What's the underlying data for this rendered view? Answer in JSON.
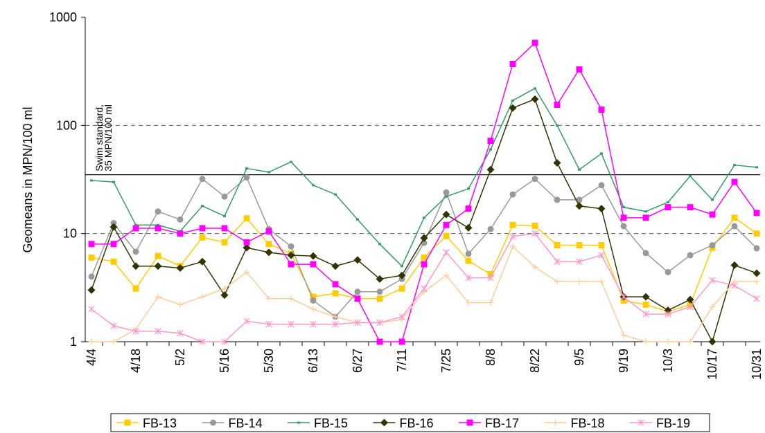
{
  "chart_data": {
    "type": "line",
    "y_label": "Geomeans in MPN/100 ml",
    "categories": [
      "4/4",
      null,
      "4/18",
      null,
      "5/2",
      null,
      "5/16",
      null,
      "5/30",
      null,
      "6/13",
      null,
      "6/27",
      null,
      "7/11",
      null,
      "7/25",
      null,
      "8/8",
      null,
      "8/22",
      null,
      "9/5",
      null,
      "9/19",
      null,
      "10/3",
      null,
      "10/17",
      null,
      "10/31"
    ],
    "ylim": [
      1,
      1000
    ],
    "yticks": [
      1,
      10,
      100,
      1000
    ],
    "log_scale": true,
    "grid": true,
    "legend": "bottom",
    "reference_line": {
      "value": 35,
      "label": [
        "Swim standard,",
        "35 MPN/100 ml"
      ]
    },
    "series": [
      {
        "name": "FB-13",
        "color": "#ffcc00",
        "marker": "square",
        "values": [
          6.0,
          5.5,
          3.1,
          6.2,
          5.0,
          9.2,
          8.3,
          13.8,
          8.0,
          6.5,
          2.6,
          2.8,
          2.5,
          2.5,
          3.1,
          6.0,
          9.5,
          5.6,
          4.2,
          12,
          11.8,
          7.8,
          7.8,
          7.8,
          2.4,
          2.2,
          1.9,
          2.2,
          7.4,
          14,
          10
        ]
      },
      {
        "name": "FB-14",
        "color": "#999999",
        "marker": "circle",
        "values": [
          4.0,
          12.5,
          6.8,
          16,
          13.5,
          32,
          22,
          33,
          11,
          7.6,
          2.4,
          1.7,
          2.9,
          2.9,
          3.8,
          8.2,
          24,
          6.5,
          11,
          23,
          32,
          20.5,
          20.5,
          28,
          11.7,
          6.6,
          4.4,
          6.3,
          7.8,
          11.7,
          7.3
        ]
      },
      {
        "name": "FB-15",
        "color": "#339966",
        "marker": "dash",
        "values": [
          31,
          30,
          12,
          12,
          10.5,
          18,
          14.5,
          40,
          37,
          46,
          28,
          23,
          13.5,
          8,
          5,
          14,
          22,
          26,
          60,
          170,
          220,
          100,
          39,
          55,
          17.5,
          16,
          19.5,
          34,
          20.5,
          43,
          41
        ]
      },
      {
        "name": "FB-16",
        "color": "#333300",
        "marker": "diamond",
        "values": [
          3.0,
          11.5,
          5,
          5,
          4.8,
          5.5,
          2.7,
          7.4,
          6.7,
          6.3,
          6.2,
          5,
          5.7,
          3.8,
          4.1,
          9.1,
          15,
          11.3,
          39,
          145,
          175,
          45,
          18,
          17,
          2.6,
          2.6,
          1.95,
          2.45,
          1.0,
          5.1,
          4.3
        ]
      },
      {
        "name": "FB-17",
        "color": "#ff00ff",
        "marker": "square",
        "values": [
          8,
          8,
          11.2,
          11.2,
          10,
          11.2,
          11.2,
          8.3,
          10.5,
          5.2,
          5.2,
          3.4,
          2.5,
          1.0,
          1.0,
          5.2,
          12,
          17,
          72,
          370,
          580,
          155,
          330,
          140,
          14,
          14,
          17.5,
          17.5,
          15,
          30,
          15.5
        ]
      },
      {
        "name": "FB-18",
        "color": "#ffcc99",
        "marker": "plus",
        "values": [
          1,
          1,
          1.3,
          2.6,
          2.2,
          2.6,
          3.1,
          4.4,
          2.5,
          2.5,
          2.0,
          1.7,
          1.5,
          1.5,
          1.6,
          2.9,
          4.1,
          2.3,
          2.3,
          7.6,
          4.9,
          3.6,
          3.6,
          3.6,
          1.15,
          1.0,
          1.0,
          1.0,
          2.1,
          3.6,
          3.6
        ]
      },
      {
        "name": "FB-19",
        "color": "#ff99cc",
        "marker": "star",
        "values": [
          2.0,
          1.4,
          1.25,
          1.25,
          1.2,
          1.0,
          1.0,
          1.55,
          1.45,
          1.45,
          1.45,
          1.45,
          1.5,
          1.5,
          1.7,
          3.1,
          6.7,
          3.9,
          3.9,
          9.4,
          10,
          5.5,
          5.5,
          6.3,
          2.6,
          1.8,
          1.8,
          2.1,
          3.7,
          3.3,
          2.5
        ]
      }
    ]
  }
}
